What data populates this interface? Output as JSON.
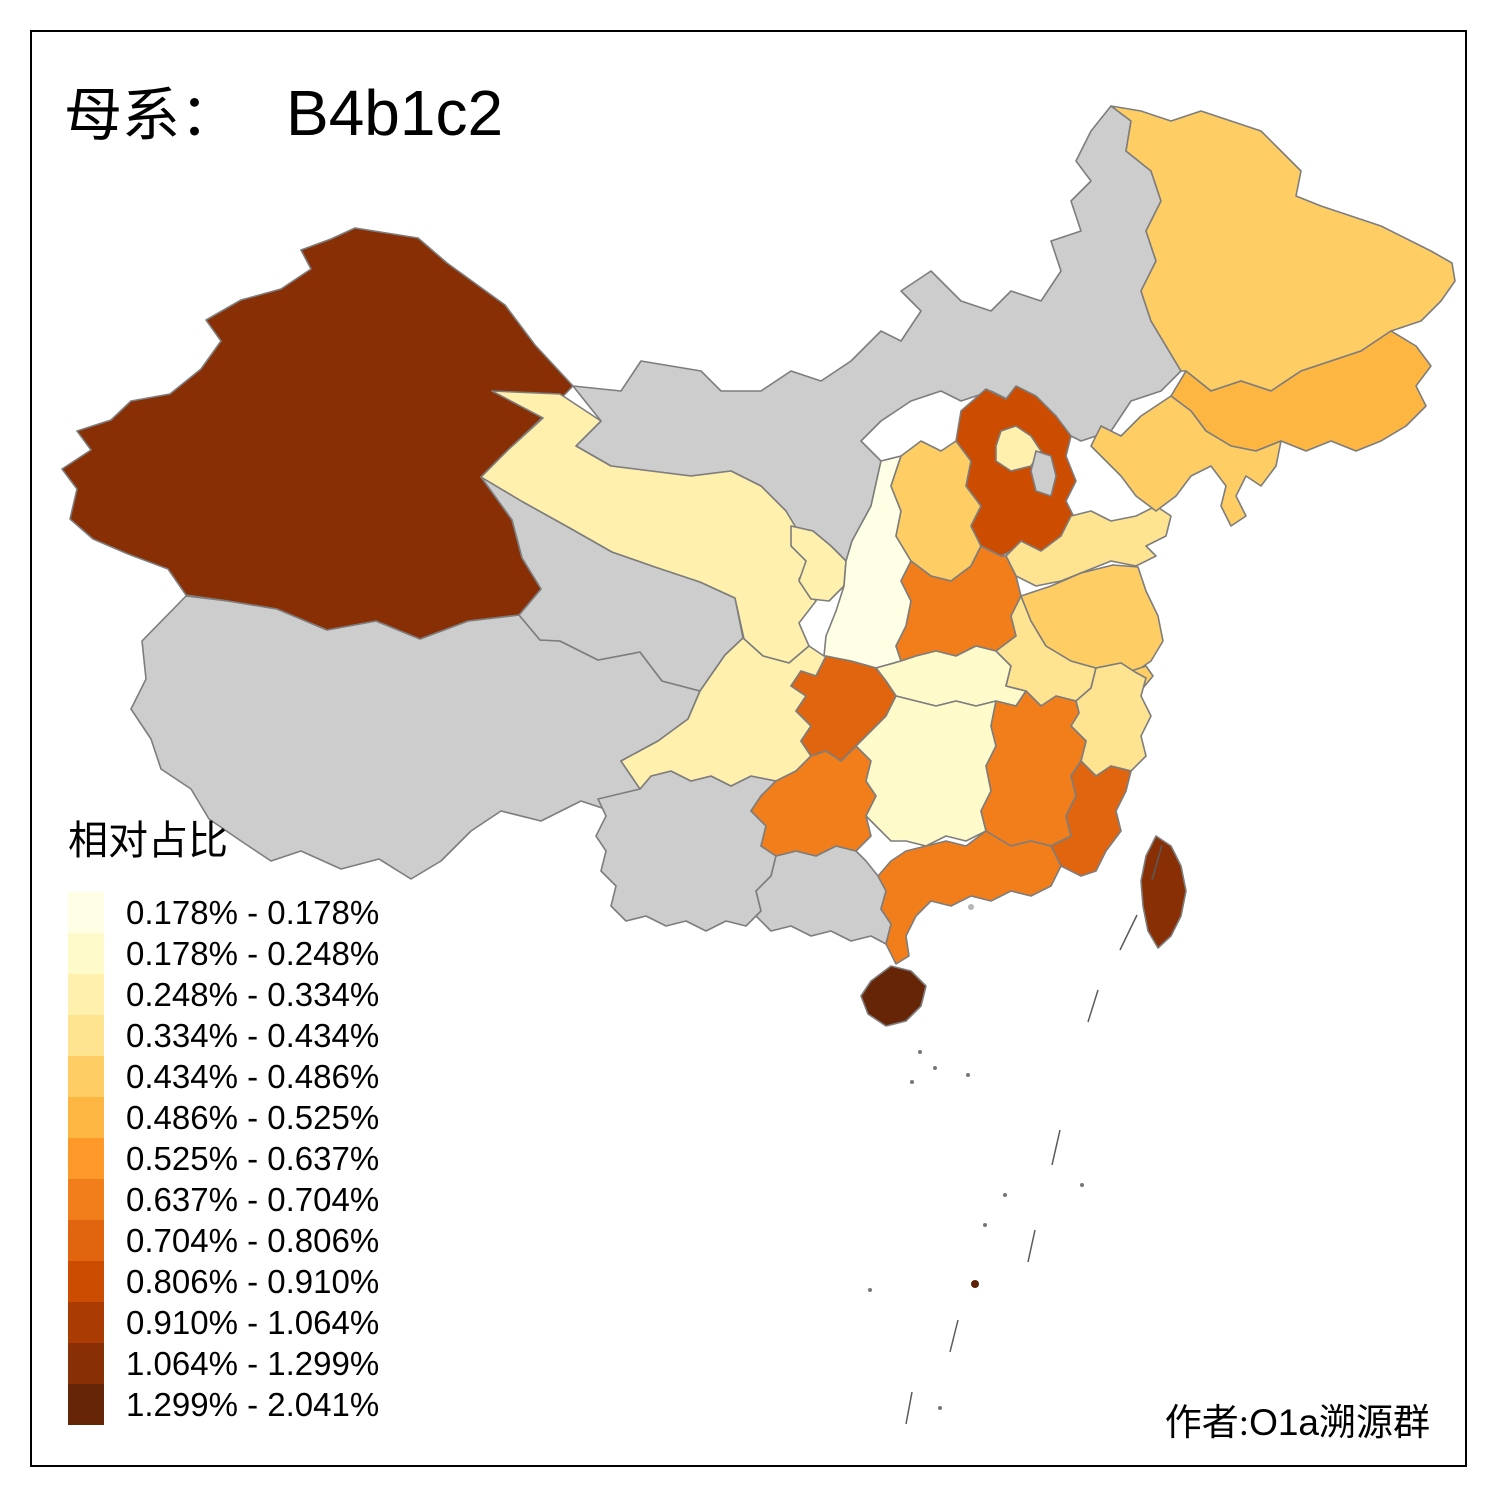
{
  "title": {
    "prefix": "母系：",
    "haplogroup": "B4b1c2"
  },
  "legend": {
    "title": "相对占比",
    "classes": [
      {
        "range": "0.178% - 0.178%",
        "color": "#FFFFE5"
      },
      {
        "range": "0.178% - 0.248%",
        "color": "#FFFACA"
      },
      {
        "range": "0.248% - 0.334%",
        "color": "#FFF0AE"
      },
      {
        "range": "0.334% - 0.434%",
        "color": "#FEE391"
      },
      {
        "range": "0.434% - 0.486%",
        "color": "#FECE65"
      },
      {
        "range": "0.486% - 0.525%",
        "color": "#FEB642"
      },
      {
        "range": "0.525% - 0.637%",
        "color": "#FE9929"
      },
      {
        "range": "0.637% - 0.704%",
        "color": "#F27E1B"
      },
      {
        "range": "0.704% - 0.806%",
        "color": "#E1640E"
      },
      {
        "range": "0.806% - 0.910%",
        "color": "#CC4C02"
      },
      {
        "range": "0.910% - 1.064%",
        "color": "#AA3C03"
      },
      {
        "range": "1.064% - 1.299%",
        "color": "#882F05"
      },
      {
        "range": "1.299% - 2.041%",
        "color": "#662506"
      }
    ]
  },
  "attribution": {
    "prefix": "作者:",
    "group": "O1a",
    "suffix": "溯源群"
  },
  "map": {
    "no_data_color": "#CDCDCD",
    "border_color": "#7D7D7D",
    "sea_color": "#FFFFFF",
    "regions": {
      "xinjiang": "#882F05",
      "tibet": "none",
      "qinghai": "none",
      "inner-mongolia": "none",
      "yunnan": "none",
      "guangxi": "none",
      "tianjin": "none",
      "gansu": "#FFF0AE",
      "ningxia": "#FFF0AE",
      "beijing": "#FFF0AE",
      "sichuan": "#FFF0AE",
      "shaanxi": "#FFFFE5",
      "hubei": "#FFFACA",
      "hunan": "#FFFACA",
      "shandong": "#FEE391",
      "anhui": "#FEE391",
      "zhejiang": "#FEE391",
      "shanxi": "#FECE65",
      "jiangsu": "#FECE65",
      "shanghai": "#FECE65",
      "heilongjiang": "#FECE65",
      "liaoning": "#FECE65",
      "jilin": "#FEB642",
      "henan": "#F27E1B",
      "guizhou": "#F27E1B",
      "guangdong": "#F27E1B",
      "jiangxi": "#F27E1B",
      "chongqing": "#E1640E",
      "fujian": "#E1640E",
      "hebei": "#CC4C02",
      "taiwan": "#882F05",
      "hainan": "#662506"
    }
  }
}
